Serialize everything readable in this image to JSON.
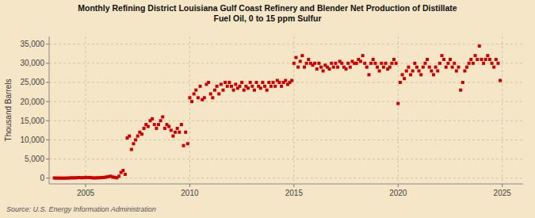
{
  "chart_data": {
    "type": "scatter",
    "title": "Monthly Refining District Louisiana Gulf Coast Refinery and Blender Net Production of Distillate\nFuel Oil, 0 to 15 ppm Sulfur",
    "y_label": "Thousand Barrels",
    "annotations": [
      "Source: U.S. Energy Information Administration"
    ],
    "color": "#cc0000",
    "marker": "square",
    "grid": true,
    "xlim": [
      2003.25,
      2026.0
    ],
    "xticks": [
      2005,
      2010,
      2015,
      2020,
      2025
    ],
    "ylim": [
      -1500,
      37000
    ],
    "yticks": [
      0,
      {
        "value": 5000,
        "label": "5,000"
      },
      {
        "value": 10000,
        "label": "10,000"
      },
      {
        "value": 15000,
        "label": "15,000"
      },
      {
        "value": 20000,
        "label": "20,000"
      },
      {
        "value": 25000,
        "label": "25,000"
      },
      {
        "value": 30000,
        "label": "30,000"
      },
      {
        "value": 35000,
        "label": "35,000"
      }
    ],
    "x": [
      2003.5,
      2003.6,
      2003.7,
      2003.8,
      2003.9,
      2004.0,
      2004.1,
      2004.2,
      2004.3,
      2004.4,
      2004.5,
      2004.6,
      2004.7,
      2004.8,
      2004.9,
      2005.0,
      2005.1,
      2005.2,
      2005.3,
      2005.4,
      2005.5,
      2005.6,
      2005.7,
      2005.8,
      2005.9,
      2006.0,
      2006.1,
      2006.2,
      2006.3,
      2006.4,
      2006.5,
      2006.6,
      2006.7,
      2006.8,
      2006.9,
      2007.0,
      2007.1,
      2007.2,
      2007.3,
      2007.4,
      2007.5,
      2007.6,
      2007.7,
      2007.8,
      2007.9,
      2008.0,
      2008.1,
      2008.2,
      2008.3,
      2008.4,
      2008.5,
      2008.6,
      2008.7,
      2008.8,
      2008.9,
      2009.0,
      2009.1,
      2009.2,
      2009.3,
      2009.4,
      2009.5,
      2009.6,
      2009.7,
      2009.8,
      2009.9,
      2010.0,
      2010.1,
      2010.2,
      2010.3,
      2010.4,
      2010.5,
      2010.6,
      2010.7,
      2010.8,
      2010.9,
      2011.0,
      2011.1,
      2011.2,
      2011.3,
      2011.4,
      2011.5,
      2011.6,
      2011.7,
      2011.8,
      2011.9,
      2012.0,
      2012.1,
      2012.2,
      2012.3,
      2012.4,
      2012.5,
      2012.6,
      2012.7,
      2012.8,
      2012.9,
      2013.0,
      2013.1,
      2013.2,
      2013.3,
      2013.4,
      2013.5,
      2013.6,
      2013.7,
      2013.8,
      2013.9,
      2014.0,
      2014.1,
      2014.2,
      2014.3,
      2014.4,
      2014.5,
      2014.6,
      2014.7,
      2014.8,
      2014.9,
      2015.0,
      2015.1,
      2015.2,
      2015.3,
      2015.4,
      2015.5,
      2015.6,
      2015.7,
      2015.8,
      2015.9,
      2016.0,
      2016.1,
      2016.2,
      2016.3,
      2016.4,
      2016.5,
      2016.6,
      2016.7,
      2016.8,
      2016.9,
      2017.0,
      2017.1,
      2017.2,
      2017.3,
      2017.4,
      2017.5,
      2017.6,
      2017.7,
      2017.8,
      2017.9,
      2018.0,
      2018.1,
      2018.2,
      2018.3,
      2018.4,
      2018.5,
      2018.6,
      2018.7,
      2018.8,
      2018.9,
      2019.0,
      2019.1,
      2019.2,
      2019.3,
      2019.4,
      2019.5,
      2019.6,
      2019.7,
      2019.8,
      2019.9,
      2020.0,
      2020.1,
      2020.2,
      2020.3,
      2020.4,
      2020.5,
      2020.6,
      2020.7,
      2020.8,
      2020.9,
      2021.0,
      2021.1,
      2021.2,
      2021.3,
      2021.4,
      2021.5,
      2021.6,
      2021.7,
      2021.8,
      2021.9,
      2022.0,
      2022.1,
      2022.2,
      2022.3,
      2022.4,
      2022.5,
      2022.6,
      2022.7,
      2022.8,
      2022.9,
      2023.0,
      2023.1,
      2023.2,
      2023.3,
      2023.4,
      2023.5,
      2023.6,
      2023.7,
      2023.8,
      2023.9,
      2024.0,
      2024.1,
      2024.2,
      2024.3,
      2024.4,
      2024.5,
      2024.6,
      2024.7,
      2024.8,
      2024.9
    ],
    "values": [
      50,
      30,
      20,
      10,
      5,
      10,
      20,
      50,
      80,
      100,
      80,
      120,
      150,
      100,
      130,
      200,
      150,
      180,
      100,
      50,
      80,
      100,
      120,
      150,
      200,
      300,
      400,
      500,
      300,
      200,
      100,
      500,
      1500,
      2000,
      1000,
      10500,
      11000,
      7500,
      9000,
      10000,
      11000,
      12000,
      11500,
      13000,
      14000,
      13500,
      15000,
      15500,
      14000,
      13000,
      14000,
      15000,
      16000,
      13000,
      14000,
      13500,
      12500,
      11000,
      12000,
      13000,
      12000,
      14000,
      8500,
      12000,
      9000,
      21000,
      20000,
      22000,
      23000,
      21000,
      24000,
      20500,
      21000,
      24500,
      25000,
      22000,
      21000,
      23000,
      24000,
      22000,
      24500,
      23000,
      25000,
      24000,
      25000,
      24000,
      23000,
      24500,
      23500,
      24000,
      25000,
      23000,
      24000,
      23500,
      25000,
      24000,
      23000,
      25000,
      24000,
      23500,
      25000,
      24000,
      23000,
      25000,
      24000,
      25000,
      24000,
      25500,
      25000,
      24000,
      25000,
      25500,
      24500,
      25000,
      25500,
      30000,
      31500,
      29000,
      30500,
      32000,
      29000,
      30000,
      31000,
      30000,
      29500,
      30000,
      28500,
      30000,
      29000,
      28000,
      29500,
      29000,
      28500,
      30000,
      29000,
      30000,
      29000,
      30500,
      30000,
      29000,
      28500,
      30000,
      29000,
      30500,
      30000,
      30000,
      31000,
      30500,
      32000,
      30000,
      29000,
      27000,
      30000,
      31000,
      30000,
      29000,
      28000,
      30000,
      29000,
      30000,
      28500,
      29000,
      30000,
      31000,
      30000,
      19500,
      25000,
      27000,
      26000,
      28000,
      29000,
      27000,
      28000,
      30000,
      29000,
      28000,
      27000,
      29000,
      30000,
      31000,
      29000,
      28000,
      27000,
      29000,
      28000,
      30000,
      32000,
      31000,
      29000,
      30000,
      31000,
      29000,
      30000,
      28000,
      29000,
      23000,
      25000,
      28000,
      29000,
      30000,
      31000,
      30000,
      32000,
      31000,
      34500,
      31000,
      30000,
      31000,
      32000,
      31000,
      30000,
      29000,
      31000,
      30000,
      25500
    ]
  }
}
